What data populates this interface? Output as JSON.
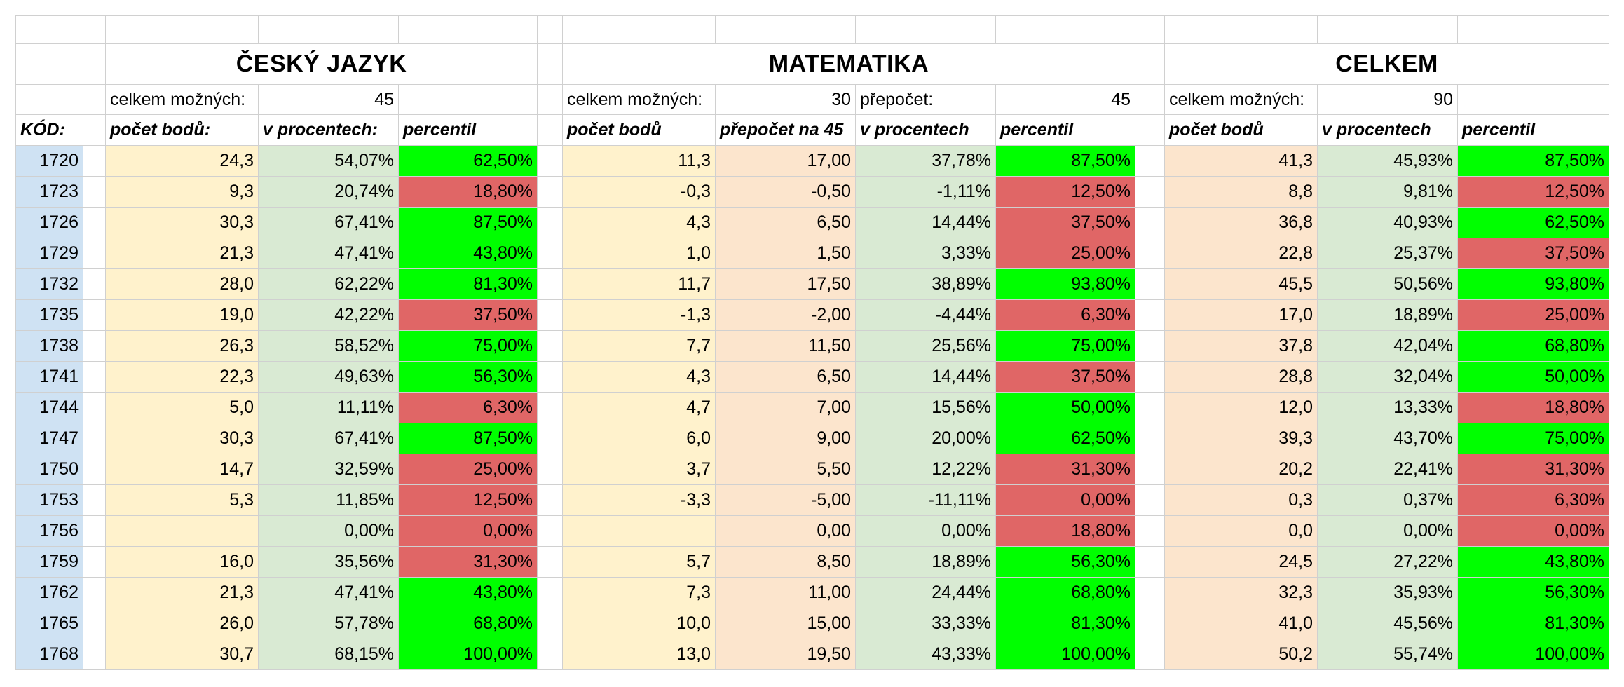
{
  "colors": {
    "code": "#cfe2f3",
    "cream": "#fff2cc",
    "peach": "#fce5cd",
    "sage": "#d9ead3",
    "above": "#00ff00",
    "below": "#e06666"
  },
  "sections": {
    "cj": {
      "title": "ČESKÝ JAZYK",
      "max_label": "celkem možných:",
      "max_value": "45",
      "headers": [
        "počet bodů:",
        "v procentech:",
        "percentil"
      ]
    },
    "mat": {
      "title": "MATEMATIKA",
      "max_label": "celkem možných:",
      "max_value": "30",
      "recalc_label": "přepočet:",
      "recalc_value": "45",
      "headers": [
        "počet bodů",
        "přepočet na 45",
        "v procentech",
        "percentil"
      ]
    },
    "total": {
      "title": "CELKEM",
      "max_label": "celkem možných:",
      "max_value": "90",
      "headers": [
        "počet bodů",
        "v procentech",
        "percentil"
      ]
    }
  },
  "code_header": "KÓD:",
  "rows": [
    {
      "code": "1720",
      "cj": [
        "24,3",
        "54,07%",
        "62,50%"
      ],
      "cj_pass": true,
      "mat": [
        "11,3",
        "17,00",
        "37,78%",
        "87,50%"
      ],
      "mat_pass": true,
      "tot": [
        "41,3",
        "45,93%",
        "87,50%"
      ],
      "tot_pass": true
    },
    {
      "code": "1723",
      "cj": [
        "9,3",
        "20,74%",
        "18,80%"
      ],
      "cj_pass": false,
      "mat": [
        "-0,3",
        "-0,50",
        "-1,11%",
        "12,50%"
      ],
      "mat_pass": false,
      "tot": [
        "8,8",
        "9,81%",
        "12,50%"
      ],
      "tot_pass": false
    },
    {
      "code": "1726",
      "cj": [
        "30,3",
        "67,41%",
        "87,50%"
      ],
      "cj_pass": true,
      "mat": [
        "4,3",
        "6,50",
        "14,44%",
        "37,50%"
      ],
      "mat_pass": false,
      "tot": [
        "36,8",
        "40,93%",
        "62,50%"
      ],
      "tot_pass": true
    },
    {
      "code": "1729",
      "cj": [
        "21,3",
        "47,41%",
        "43,80%"
      ],
      "cj_pass": true,
      "mat": [
        "1,0",
        "1,50",
        "3,33%",
        "25,00%"
      ],
      "mat_pass": false,
      "tot": [
        "22,8",
        "25,37%",
        "37,50%"
      ],
      "tot_pass": false
    },
    {
      "code": "1732",
      "cj": [
        "28,0",
        "62,22%",
        "81,30%"
      ],
      "cj_pass": true,
      "mat": [
        "11,7",
        "17,50",
        "38,89%",
        "93,80%"
      ],
      "mat_pass": true,
      "tot": [
        "45,5",
        "50,56%",
        "93,80%"
      ],
      "tot_pass": true
    },
    {
      "code": "1735",
      "cj": [
        "19,0",
        "42,22%",
        "37,50%"
      ],
      "cj_pass": false,
      "mat": [
        "-1,3",
        "-2,00",
        "-4,44%",
        "6,30%"
      ],
      "mat_pass": false,
      "tot": [
        "17,0",
        "18,89%",
        "25,00%"
      ],
      "tot_pass": false
    },
    {
      "code": "1738",
      "cj": [
        "26,3",
        "58,52%",
        "75,00%"
      ],
      "cj_pass": true,
      "mat": [
        "7,7",
        "11,50",
        "25,56%",
        "75,00%"
      ],
      "mat_pass": true,
      "tot": [
        "37,8",
        "42,04%",
        "68,80%"
      ],
      "tot_pass": true
    },
    {
      "code": "1741",
      "cj": [
        "22,3",
        "49,63%",
        "56,30%"
      ],
      "cj_pass": true,
      "mat": [
        "4,3",
        "6,50",
        "14,44%",
        "37,50%"
      ],
      "mat_pass": false,
      "tot": [
        "28,8",
        "32,04%",
        "50,00%"
      ],
      "tot_pass": true
    },
    {
      "code": "1744",
      "cj": [
        "5,0",
        "11,11%",
        "6,30%"
      ],
      "cj_pass": false,
      "mat": [
        "4,7",
        "7,00",
        "15,56%",
        "50,00%"
      ],
      "mat_pass": true,
      "tot": [
        "12,0",
        "13,33%",
        "18,80%"
      ],
      "tot_pass": false
    },
    {
      "code": "1747",
      "cj": [
        "30,3",
        "67,41%",
        "87,50%"
      ],
      "cj_pass": true,
      "mat": [
        "6,0",
        "9,00",
        "20,00%",
        "62,50%"
      ],
      "mat_pass": true,
      "tot": [
        "39,3",
        "43,70%",
        "75,00%"
      ],
      "tot_pass": true
    },
    {
      "code": "1750",
      "cj": [
        "14,7",
        "32,59%",
        "25,00%"
      ],
      "cj_pass": false,
      "mat": [
        "3,7",
        "5,50",
        "12,22%",
        "31,30%"
      ],
      "mat_pass": false,
      "tot": [
        "20,2",
        "22,41%",
        "31,30%"
      ],
      "tot_pass": false
    },
    {
      "code": "1753",
      "cj": [
        "5,3",
        "11,85%",
        "12,50%"
      ],
      "cj_pass": false,
      "mat": [
        "-3,3",
        "-5,00",
        "-11,11%",
        "0,00%"
      ],
      "mat_pass": false,
      "tot": [
        "0,3",
        "0,37%",
        "6,30%"
      ],
      "tot_pass": false
    },
    {
      "code": "1756",
      "cj": [
        "",
        "0,00%",
        "0,00%"
      ],
      "cj_pass": false,
      "mat": [
        "",
        "0,00",
        "0,00%",
        "18,80%"
      ],
      "mat_pass": false,
      "tot": [
        "0,0",
        "0,00%",
        "0,00%"
      ],
      "tot_pass": false
    },
    {
      "code": "1759",
      "cj": [
        "16,0",
        "35,56%",
        "31,30%"
      ],
      "cj_pass": false,
      "mat": [
        "5,7",
        "8,50",
        "18,89%",
        "56,30%"
      ],
      "mat_pass": true,
      "tot": [
        "24,5",
        "27,22%",
        "43,80%"
      ],
      "tot_pass": true
    },
    {
      "code": "1762",
      "cj": [
        "21,3",
        "47,41%",
        "43,80%"
      ],
      "cj_pass": true,
      "mat": [
        "7,3",
        "11,00",
        "24,44%",
        "68,80%"
      ],
      "mat_pass": true,
      "tot": [
        "32,3",
        "35,93%",
        "56,30%"
      ],
      "tot_pass": true
    },
    {
      "code": "1765",
      "cj": [
        "26,0",
        "57,78%",
        "68,80%"
      ],
      "cj_pass": true,
      "mat": [
        "10,0",
        "15,00",
        "33,33%",
        "81,30%"
      ],
      "mat_pass": true,
      "tot": [
        "41,0",
        "45,56%",
        "81,30%"
      ],
      "tot_pass": true
    },
    {
      "code": "1768",
      "cj": [
        "30,7",
        "68,15%",
        "100,00%"
      ],
      "cj_pass": true,
      "mat": [
        "13,0",
        "19,50",
        "43,33%",
        "100,00%"
      ],
      "mat_pass": true,
      "tot": [
        "50,2",
        "55,74%",
        "100,00%"
      ],
      "tot_pass": true
    }
  ]
}
